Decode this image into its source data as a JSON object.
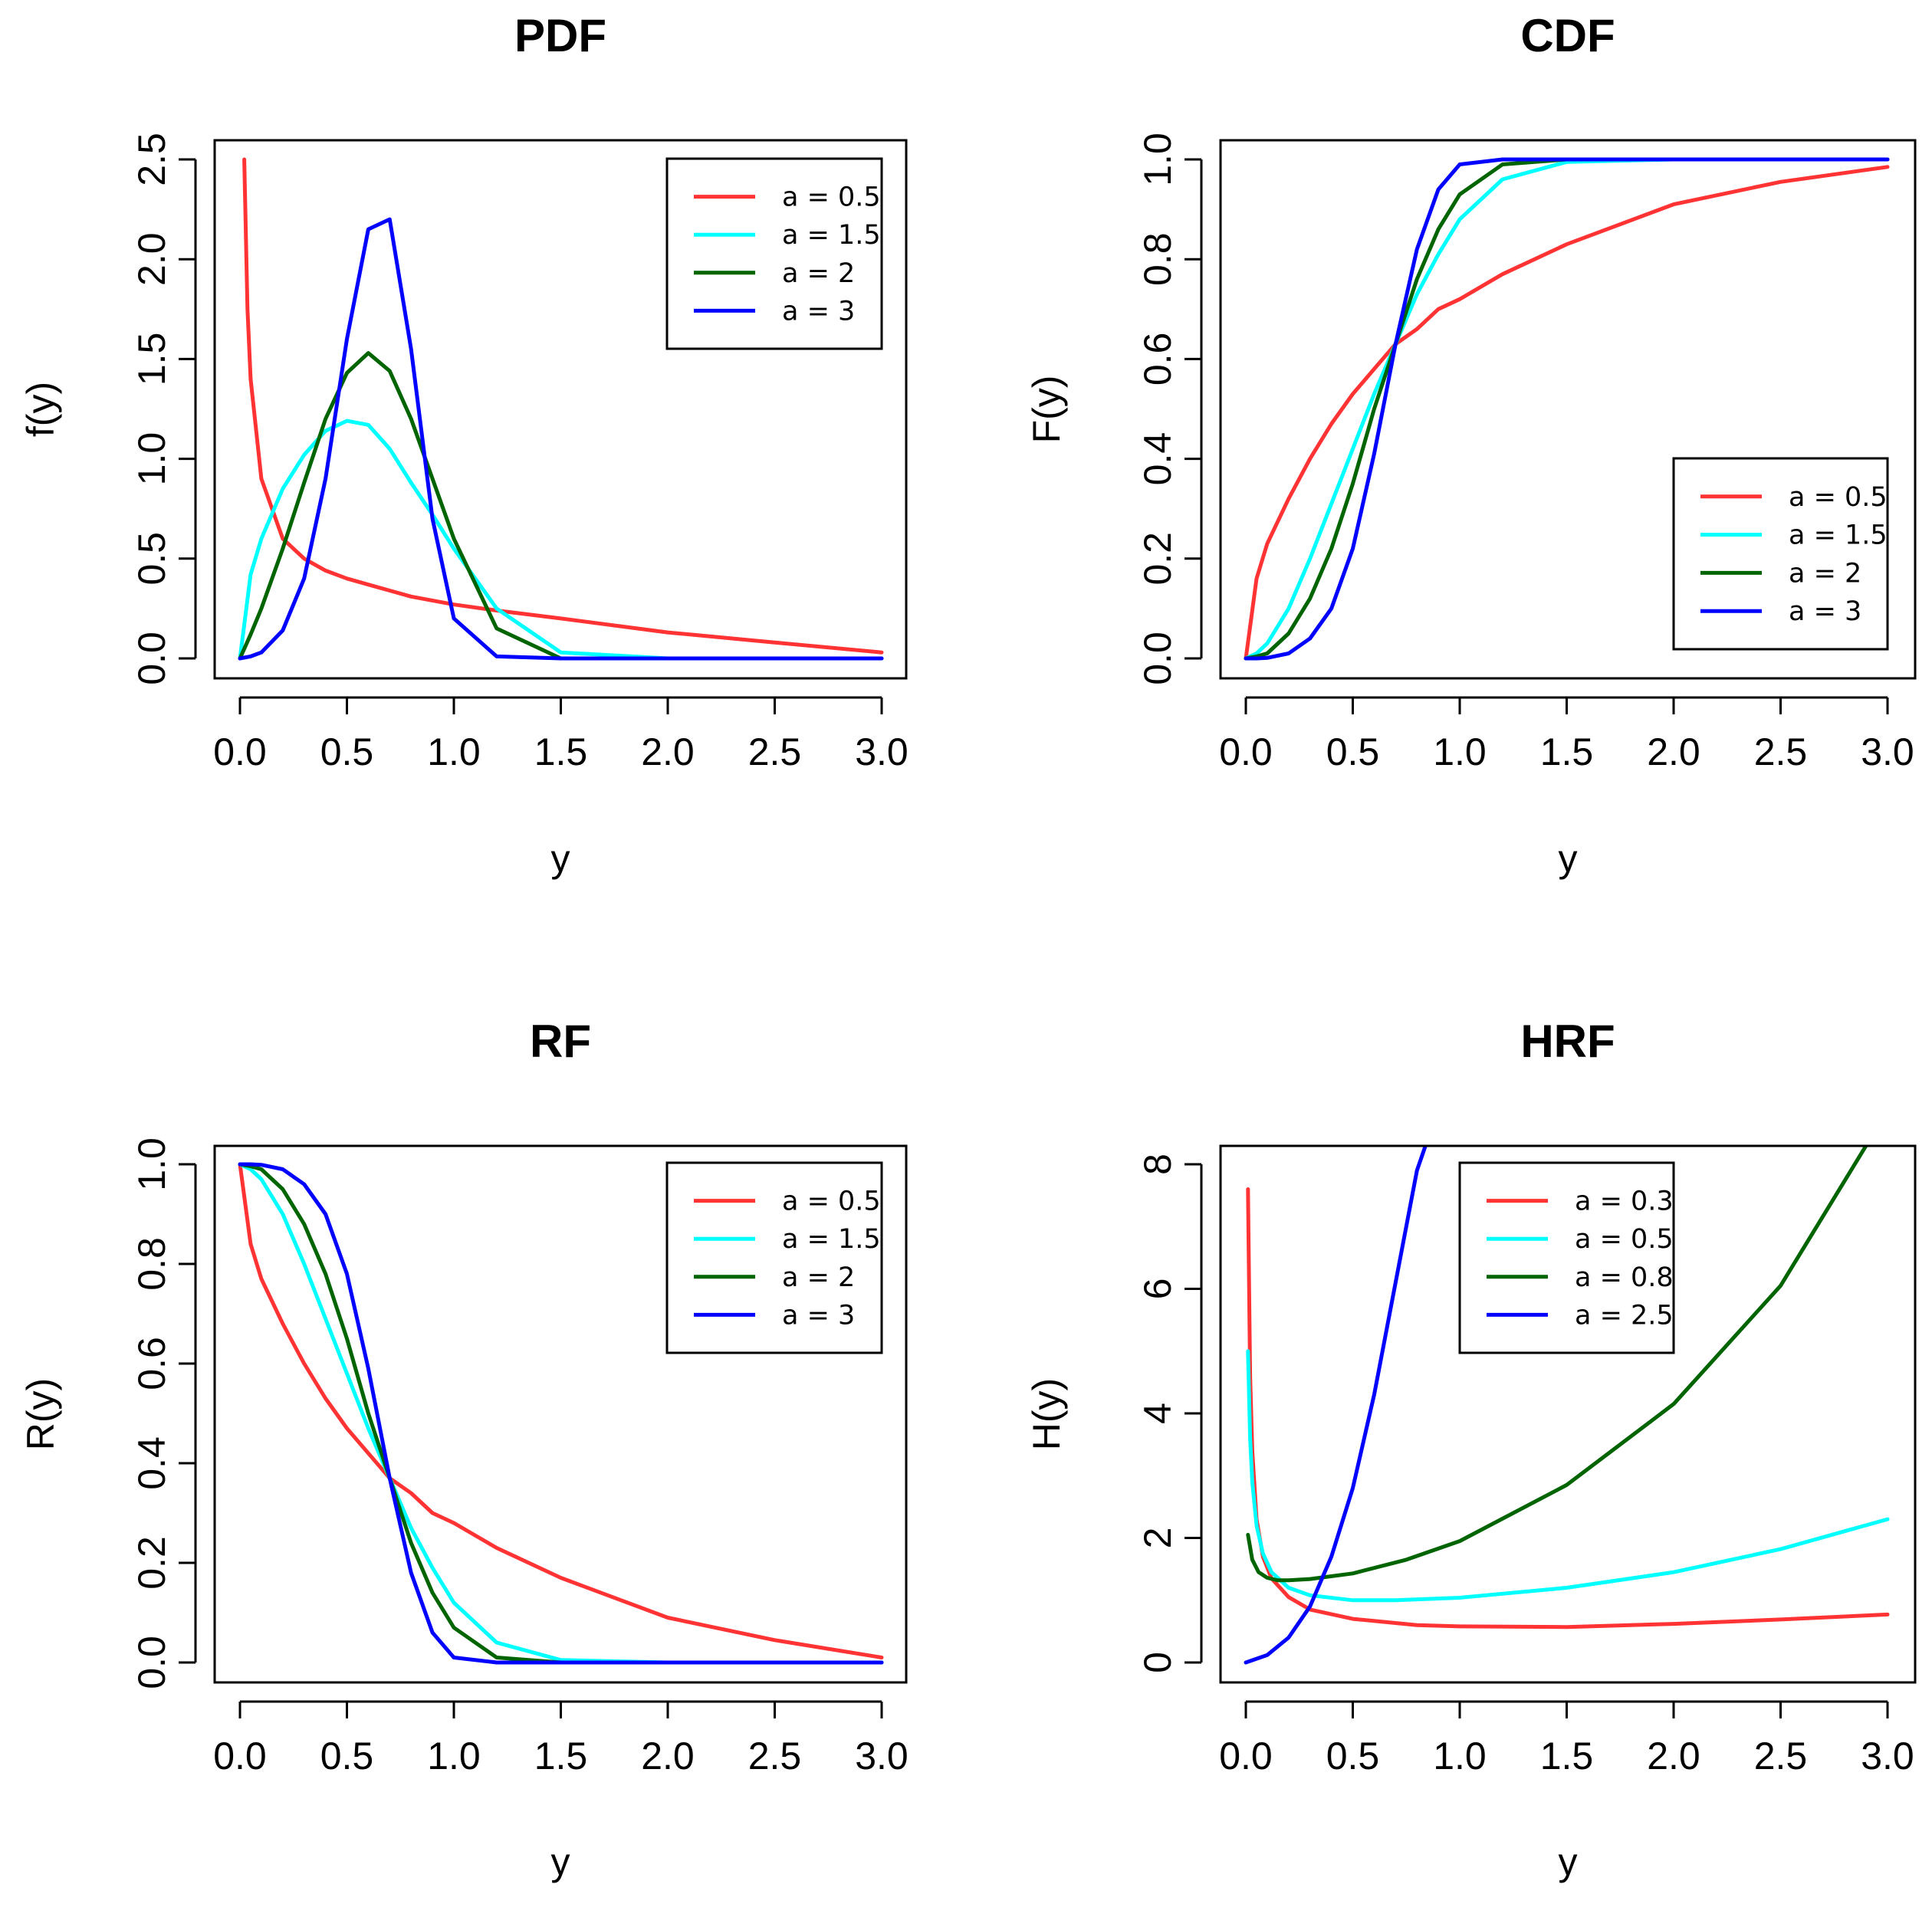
{
  "chart_data": [
    {
      "type": "line",
      "title": "PDF",
      "xlabel": "y",
      "ylabel": "f(y)",
      "xlim": [
        0,
        3
      ],
      "ylim": [
        0,
        2.5
      ],
      "xticks": [
        "0.0",
        "0.5",
        "1.0",
        "1.5",
        "2.0",
        "2.5",
        "3.0"
      ],
      "yticks": [
        "0.0",
        "0.5",
        "1.0",
        "1.5",
        "2.0",
        "2.5"
      ],
      "legend_position": "top-right",
      "x": [
        0.0,
        0.05,
        0.1,
        0.2,
        0.3,
        0.4,
        0.5,
        0.6,
        0.7,
        0.8,
        0.9,
        1.0,
        1.2,
        1.5,
        2.0,
        2.5,
        3.0
      ],
      "series": [
        {
          "name": "a = 0.5",
          "color": "#ff3333",
          "x": [
            0.02,
            0.035,
            0.05,
            0.1,
            0.2,
            0.3,
            0.4,
            0.5,
            0.6,
            0.7,
            0.8,
            1.0,
            1.2,
            1.5,
            2.0,
            2.5,
            3.0
          ],
          "values": [
            2.5,
            1.75,
            1.4,
            0.9,
            0.6,
            0.5,
            0.44,
            0.4,
            0.37,
            0.34,
            0.31,
            0.27,
            0.24,
            0.2,
            0.13,
            0.08,
            0.03
          ]
        },
        {
          "name": "a = 1.5",
          "color": "#00ffff",
          "values": [
            0.0,
            0.42,
            0.6,
            0.85,
            1.02,
            1.14,
            1.19,
            1.17,
            1.05,
            0.88,
            0.72,
            0.55,
            0.25,
            0.03,
            0.0,
            0.0,
            0.0
          ]
        },
        {
          "name": "a = 2",
          "color": "#006400",
          "values": [
            0.0,
            0.12,
            0.25,
            0.55,
            0.88,
            1.2,
            1.43,
            1.53,
            1.44,
            1.2,
            0.9,
            0.6,
            0.15,
            0.0,
            0.0,
            0.0,
            0.0
          ]
        },
        {
          "name": "a = 3",
          "color": "#0000ff",
          "values": [
            0.0,
            0.01,
            0.03,
            0.14,
            0.4,
            0.9,
            1.6,
            2.15,
            2.2,
            1.55,
            0.7,
            0.2,
            0.01,
            0.0,
            0.0,
            0.0,
            0.0
          ]
        }
      ]
    },
    {
      "type": "line",
      "title": "CDF",
      "xlabel": "y",
      "ylabel": "F(y)",
      "xlim": [
        0,
        3
      ],
      "ylim": [
        0,
        1
      ],
      "xticks": [
        "0.0",
        "0.5",
        "1.0",
        "1.5",
        "2.0",
        "2.5",
        "3.0"
      ],
      "yticks": [
        "0.0",
        "0.2",
        "0.4",
        "0.6",
        "0.8",
        "1.0"
      ],
      "legend_position": "bottom-right",
      "x": [
        0.0,
        0.05,
        0.1,
        0.2,
        0.3,
        0.4,
        0.5,
        0.6,
        0.7,
        0.8,
        0.9,
        1.0,
        1.2,
        1.5,
        2.0,
        2.5,
        3.0
      ],
      "series": [
        {
          "name": "a = 0.5",
          "color": "#ff3333",
          "values": [
            0.0,
            0.16,
            0.23,
            0.32,
            0.4,
            0.47,
            0.53,
            0.58,
            0.63,
            0.66,
            0.7,
            0.72,
            0.77,
            0.83,
            0.91,
            0.955,
            0.985
          ]
        },
        {
          "name": "a = 1.5",
          "color": "#00ffff",
          "values": [
            0.0,
            0.01,
            0.03,
            0.1,
            0.2,
            0.31,
            0.42,
            0.53,
            0.63,
            0.73,
            0.81,
            0.88,
            0.96,
            0.995,
            1.0,
            1.0,
            1.0
          ]
        },
        {
          "name": "a = 2",
          "color": "#006400",
          "values": [
            0.0,
            0.004,
            0.01,
            0.05,
            0.12,
            0.22,
            0.35,
            0.5,
            0.63,
            0.76,
            0.86,
            0.93,
            0.99,
            1.0,
            1.0,
            1.0,
            1.0
          ]
        },
        {
          "name": "a = 3",
          "color": "#0000ff",
          "values": [
            0.0,
            0.0,
            0.001,
            0.01,
            0.04,
            0.1,
            0.22,
            0.41,
            0.63,
            0.82,
            0.94,
            0.99,
            1.0,
            1.0,
            1.0,
            1.0,
            1.0
          ]
        }
      ]
    },
    {
      "type": "line",
      "title": "RF",
      "xlabel": "y",
      "ylabel": "R(y)",
      "xlim": [
        0,
        3
      ],
      "ylim": [
        0,
        1
      ],
      "xticks": [
        "0.0",
        "0.5",
        "1.0",
        "1.5",
        "2.0",
        "2.5",
        "3.0"
      ],
      "yticks": [
        "0.0",
        "0.2",
        "0.4",
        "0.6",
        "0.8",
        "1.0"
      ],
      "legend_position": "top-right",
      "x": [
        0.0,
        0.05,
        0.1,
        0.2,
        0.3,
        0.4,
        0.5,
        0.6,
        0.7,
        0.8,
        0.9,
        1.0,
        1.2,
        1.5,
        2.0,
        2.5,
        3.0
      ],
      "series": [
        {
          "name": "a = 0.5",
          "color": "#ff3333",
          "values": [
            1.0,
            0.84,
            0.77,
            0.68,
            0.6,
            0.53,
            0.47,
            0.42,
            0.37,
            0.34,
            0.3,
            0.28,
            0.23,
            0.17,
            0.09,
            0.045,
            0.01
          ]
        },
        {
          "name": "a = 1.5",
          "color": "#00ffff",
          "values": [
            1.0,
            0.99,
            0.97,
            0.9,
            0.8,
            0.69,
            0.58,
            0.47,
            0.37,
            0.27,
            0.19,
            0.12,
            0.04,
            0.005,
            0.0,
            0.0,
            0.0
          ]
        },
        {
          "name": "a = 2",
          "color": "#006400",
          "values": [
            1.0,
            0.996,
            0.99,
            0.95,
            0.88,
            0.78,
            0.65,
            0.5,
            0.37,
            0.24,
            0.14,
            0.07,
            0.01,
            0.0,
            0.0,
            0.0,
            0.0
          ]
        },
        {
          "name": "a = 3",
          "color": "#0000ff",
          "values": [
            1.0,
            1.0,
            0.999,
            0.99,
            0.96,
            0.9,
            0.78,
            0.59,
            0.37,
            0.18,
            0.06,
            0.01,
            0.0,
            0.0,
            0.0,
            0.0,
            0.0
          ]
        }
      ]
    },
    {
      "type": "line",
      "title": "HRF",
      "xlabel": "y",
      "ylabel": "H(y)",
      "xlim": [
        0,
        3
      ],
      "ylim": [
        0,
        8
      ],
      "xticks": [
        "0.0",
        "0.5",
        "1.0",
        "1.5",
        "2.0",
        "2.5",
        "3.0"
      ],
      "yticks": [
        "0",
        "2",
        "4",
        "6",
        "8"
      ],
      "legend_position": "top-center",
      "series": [
        {
          "name": "a = 0.3",
          "color": "#ff3333",
          "x": [
            0.01,
            0.02,
            0.03,
            0.05,
            0.08,
            0.12,
            0.2,
            0.3,
            0.5,
            0.8,
            1.0,
            1.5,
            2.0,
            2.5,
            3.0
          ],
          "values": [
            7.6,
            4.6,
            3.4,
            2.3,
            1.7,
            1.35,
            1.05,
            0.85,
            0.7,
            0.6,
            0.58,
            0.57,
            0.62,
            0.69,
            0.77
          ]
        },
        {
          "name": "a = 0.5",
          "color": "#00ffff",
          "x": [
            0.01,
            0.02,
            0.03,
            0.05,
            0.08,
            0.12,
            0.2,
            0.3,
            0.5,
            0.7,
            1.0,
            1.5,
            2.0,
            2.5,
            3.0
          ],
          "values": [
            5.0,
            3.6,
            2.9,
            2.2,
            1.75,
            1.45,
            1.2,
            1.08,
            1.0,
            1.0,
            1.04,
            1.2,
            1.45,
            1.82,
            2.3
          ]
        },
        {
          "name": "a = 0.8",
          "color": "#006400",
          "x": [
            0.01,
            0.03,
            0.06,
            0.1,
            0.15,
            0.2,
            0.3,
            0.5,
            0.75,
            1.0,
            1.5,
            2.0,
            2.5,
            2.9
          ],
          "values": [
            2.05,
            1.65,
            1.45,
            1.36,
            1.32,
            1.32,
            1.34,
            1.43,
            1.65,
            1.95,
            2.85,
            4.15,
            6.05,
            8.3
          ]
        },
        {
          "name": "a = 2.5",
          "color": "#0000ff",
          "x": [
            0.0,
            0.1,
            0.2,
            0.3,
            0.4,
            0.5,
            0.6,
            0.7,
            0.8,
            0.84
          ],
          "values": [
            0.0,
            0.12,
            0.4,
            0.9,
            1.7,
            2.8,
            4.3,
            6.1,
            7.9,
            8.3
          ]
        }
      ]
    }
  ]
}
